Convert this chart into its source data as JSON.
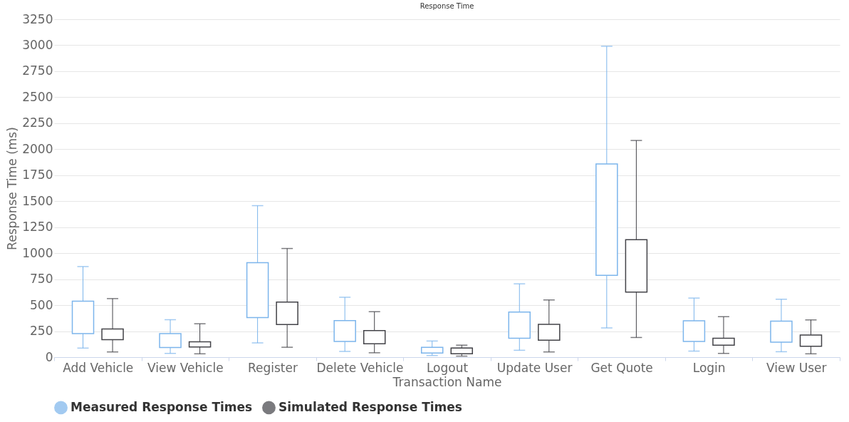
{
  "chart_data": {
    "type": "box",
    "title": "Response Time",
    "xlabel": "Transaction Name",
    "ylabel": "Response Time (ms)",
    "categories": [
      "Add Vehicle",
      "View Vehicle",
      "Register",
      "Delete Vehicle",
      "Logout",
      "Update User",
      "Get Quote",
      "Login",
      "View User"
    ],
    "ylim": [
      0,
      3250
    ],
    "yticks": [
      0,
      250,
      500,
      750,
      1000,
      1250,
      1500,
      1750,
      2000,
      2250,
      2500,
      2750,
      3000,
      3250
    ],
    "grid": "y",
    "legend": "bottom",
    "series": [
      {
        "name": "Measured Response Times",
        "color": "#7cb5ec",
        "boxes": [
          {
            "low": 87,
            "q1": 226,
            "median": 332,
            "q3": 539,
            "high": 871
          },
          {
            "low": 36,
            "q1": 92,
            "median": 131,
            "q3": 226,
            "high": 360
          },
          {
            "low": 137,
            "q1": 381,
            "median": 568,
            "q3": 908,
            "high": 1457
          },
          {
            "low": 55,
            "q1": 150,
            "median": 213,
            "q3": 352,
            "high": 576
          },
          {
            "low": 16,
            "q1": 39,
            "median": 71,
            "q3": 95,
            "high": 155
          },
          {
            "low": 66,
            "q1": 182,
            "median": 265,
            "q3": 434,
            "high": 705
          },
          {
            "low": 281,
            "q1": 786,
            "median": 1197,
            "q3": 1858,
            "high": 2990
          },
          {
            "low": 58,
            "q1": 150,
            "median": 213,
            "q3": 350,
            "high": 568
          },
          {
            "low": 52,
            "q1": 144,
            "median": 231,
            "q3": 347,
            "high": 557
          }
        ]
      },
      {
        "name": "Simulated Response Times",
        "color": "#434348",
        "boxes": [
          {
            "low": 50,
            "q1": 168,
            "median": 265,
            "q3": 271,
            "high": 563
          },
          {
            "low": 32,
            "q1": 97,
            "median": 125,
            "q3": 147,
            "high": 321
          },
          {
            "low": 95,
            "q1": 313,
            "median": 520,
            "q3": 529,
            "high": 1045
          },
          {
            "low": 42,
            "q1": 129,
            "median": 250,
            "q3": 255,
            "high": 437
          },
          {
            "low": 10,
            "q1": 32,
            "median": 85,
            "q3": 87,
            "high": 115
          },
          {
            "low": 50,
            "q1": 163,
            "median": 310,
            "q3": 316,
            "high": 550
          },
          {
            "low": 189,
            "q1": 626,
            "median": 1120,
            "q3": 1129,
            "high": 2084
          },
          {
            "low": 36,
            "q1": 115,
            "median": 175,
            "q3": 182,
            "high": 389
          },
          {
            "low": 32,
            "q1": 105,
            "median": 208,
            "q3": 213,
            "high": 358
          }
        ]
      }
    ]
  }
}
